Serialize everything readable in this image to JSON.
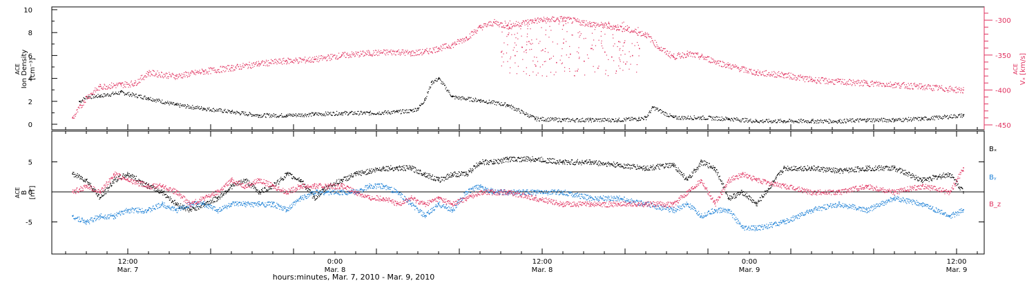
{
  "figure": {
    "xlabel": "hours:minutes, Mar.  7, 2010 - Mar.  9, 2010"
  },
  "chart_data": [
    {
      "type": "scatter",
      "panel": "density-velocity",
      "ylabel_left": [
        "ACE",
        "Ion Density",
        "[cm⁻³]"
      ],
      "ylabel_right": [
        "ACE",
        "Vₓ [km/s]"
      ],
      "ylim_left": [
        -0.5,
        10
      ],
      "ylim_right": [
        -455,
        -285
      ],
      "yticks_left": [
        0,
        2,
        4,
        6,
        8,
        10
      ],
      "yticks_right": [
        -450,
        -400,
        -350,
        -300
      ],
      "series": [
        {
          "name": "Ion Density",
          "axis": "left",
          "color": "#000000",
          "x": [
            2,
            3,
            5,
            8,
            12,
            16,
            20,
            24,
            28,
            32,
            36,
            40,
            44,
            48,
            50,
            51,
            52,
            53,
            54,
            56,
            60,
            64,
            68,
            72,
            76,
            80,
            83,
            84,
            85,
            88,
            92,
            96,
            100,
            104,
            108,
            112,
            116,
            120,
            124,
            130
          ],
          "y": [
            2.0,
            2.4,
            2.5,
            2.8,
            2.3,
            1.7,
            1.4,
            1.1,
            0.8,
            0.8,
            0.9,
            1.0,
            1.0,
            1.1,
            1.2,
            1.4,
            2.2,
            3.7,
            4.0,
            2.4,
            2.1,
            1.7,
            0.5,
            0.4,
            0.4,
            0.4,
            0.5,
            0.6,
            1.5,
            0.6,
            0.6,
            0.5,
            0.3,
            0.3,
            0.3,
            0.3,
            0.4,
            0.4,
            0.5,
            0.8
          ]
        },
        {
          "name": "Vx",
          "axis": "right",
          "color": "#e0305e",
          "x": [
            1,
            3,
            5,
            8,
            10,
            12,
            16,
            20,
            24,
            28,
            32,
            36,
            40,
            44,
            48,
            50,
            52,
            54,
            56,
            58,
            60,
            62,
            64,
            68,
            72,
            76,
            80,
            84,
            86,
            88,
            90,
            92,
            96,
            100,
            104,
            108,
            112,
            116,
            120,
            124,
            130
          ],
          "y": [
            -440,
            -410,
            -395,
            -392,
            -390,
            -375,
            -380,
            -373,
            -368,
            -362,
            -358,
            -356,
            -350,
            -347,
            -345,
            -347,
            -345,
            -340,
            -335,
            -325,
            -310,
            -303,
            -308,
            -300,
            -298,
            -305,
            -310,
            -320,
            -340,
            -352,
            -348,
            -352,
            -365,
            -375,
            -378,
            -385,
            -388,
            -390,
            -392,
            -395,
            -400
          ]
        },
        {
          "name": "Vx-scatter",
          "axis": "right",
          "color": "#e0305e",
          "x": [
            63,
            64,
            65,
            66,
            67,
            68,
            69,
            70,
            71,
            72,
            73,
            74,
            75,
            76,
            77,
            78,
            79,
            80,
            81,
            82,
            83
          ],
          "y": [
            -345,
            -320,
            -350,
            -338,
            -330,
            -365,
            -342,
            -355,
            -360,
            -332,
            -348,
            -372,
            -358,
            -340,
            -368,
            -345,
            -352,
            -330,
            -362,
            -350,
            -340
          ]
        }
      ]
    },
    {
      "type": "scatter",
      "panel": "magnetic-field",
      "ylabel_left": [
        "ACE",
        "B",
        "[nT]"
      ],
      "ylim": [
        -10,
        10
      ],
      "yticks": [
        -5,
        0,
        5
      ],
      "legend": [
        "Bₓ",
        "Bᵧ",
        "B_z"
      ],
      "legend_position": "right",
      "series": [
        {
          "name": "Bx",
          "color": "#000000",
          "x": [
            1,
            3,
            5,
            7,
            9,
            12,
            14,
            16,
            18,
            20,
            22,
            24,
            26,
            28,
            30,
            32,
            34,
            36,
            38,
            40,
            42,
            44,
            46,
            48,
            50,
            52,
            54,
            56,
            58,
            60,
            62,
            64,
            68,
            72,
            76,
            80,
            84,
            88,
            90,
            92,
            94,
            96,
            98,
            100,
            104,
            108,
            112,
            116,
            120,
            124,
            128,
            130
          ],
          "y": [
            3,
            2,
            -1,
            2,
            3,
            1,
            0,
            -2,
            -3,
            -2,
            -1,
            1,
            2,
            0,
            1,
            3,
            2,
            -1,
            1,
            2,
            3,
            3.5,
            4,
            4,
            4,
            3,
            2,
            3,
            3,
            5,
            5,
            5.5,
            5.5,
            5,
            5,
            4.5,
            4,
            4.5,
            2,
            5,
            4,
            -1,
            0,
            -2,
            4,
            4,
            3.5,
            4,
            4,
            2,
            3,
            0
          ]
        },
        {
          "name": "By",
          "color": "#1a7fd6",
          "x": [
            1,
            3,
            5,
            7,
            9,
            12,
            14,
            16,
            18,
            20,
            22,
            24,
            26,
            28,
            30,
            32,
            34,
            36,
            38,
            40,
            42,
            44,
            46,
            48,
            50,
            52,
            54,
            56,
            58,
            60,
            62,
            64,
            68,
            72,
            76,
            80,
            84,
            88,
            90,
            92,
            94,
            96,
            98,
            100,
            104,
            108,
            112,
            116,
            120,
            124,
            128,
            130
          ],
          "y": [
            -4,
            -5,
            -4,
            -4,
            -3,
            -3,
            -2,
            -3,
            -2,
            -2,
            -3,
            -2,
            -2,
            -2,
            -2,
            -3,
            -1,
            0,
            0,
            0,
            0,
            1,
            1,
            0,
            -2,
            -4,
            -2,
            -3,
            0,
            1,
            0,
            0,
            0,
            0,
            -1,
            -1,
            -2,
            -3,
            -2,
            -4,
            -3,
            -3,
            -6,
            -6,
            -5,
            -3,
            -2,
            -3,
            -1,
            -2,
            -4,
            -3
          ]
        },
        {
          "name": "Bz",
          "color": "#e0305e",
          "x": [
            1,
            3,
            5,
            7,
            9,
            12,
            14,
            16,
            18,
            20,
            22,
            24,
            26,
            28,
            30,
            32,
            34,
            36,
            38,
            40,
            42,
            44,
            46,
            48,
            50,
            52,
            54,
            56,
            58,
            60,
            62,
            64,
            68,
            72,
            76,
            80,
            84,
            88,
            90,
            92,
            94,
            96,
            98,
            100,
            104,
            108,
            112,
            116,
            120,
            124,
            128,
            130
          ],
          "y": [
            0,
            1,
            0,
            3,
            2,
            1,
            1,
            0,
            -2,
            -1,
            0,
            2,
            1,
            2,
            1,
            0,
            1,
            1,
            1,
            1,
            0,
            -1,
            -1,
            -2,
            -1,
            -2,
            -1,
            -2,
            -1,
            0,
            0,
            0,
            -1,
            -2,
            -2,
            -2,
            -2,
            -2,
            0,
            2,
            -2,
            2,
            3,
            2,
            1,
            0,
            0,
            1,
            0,
            1,
            0,
            4
          ]
        }
      ]
    }
  ],
  "x_axis": {
    "range_hours": [
      -2,
      133
    ],
    "ticks": [
      {
        "hour": 9,
        "time": "12:00",
        "date": "Mar. 7"
      },
      {
        "hour": 39,
        "time": "0:00",
        "date": "Mar. 8"
      },
      {
        "hour": 69,
        "time": "12:00",
        "date": "Mar. 8"
      },
      {
        "hour": 99,
        "time": "0:00",
        "date": "Mar. 9"
      },
      {
        "hour": 129,
        "time": "12:00",
        "date": "Mar. 9"
      }
    ]
  },
  "colors": {
    "black": "#000000",
    "blue": "#1a7fd6",
    "red": "#e0305e"
  }
}
